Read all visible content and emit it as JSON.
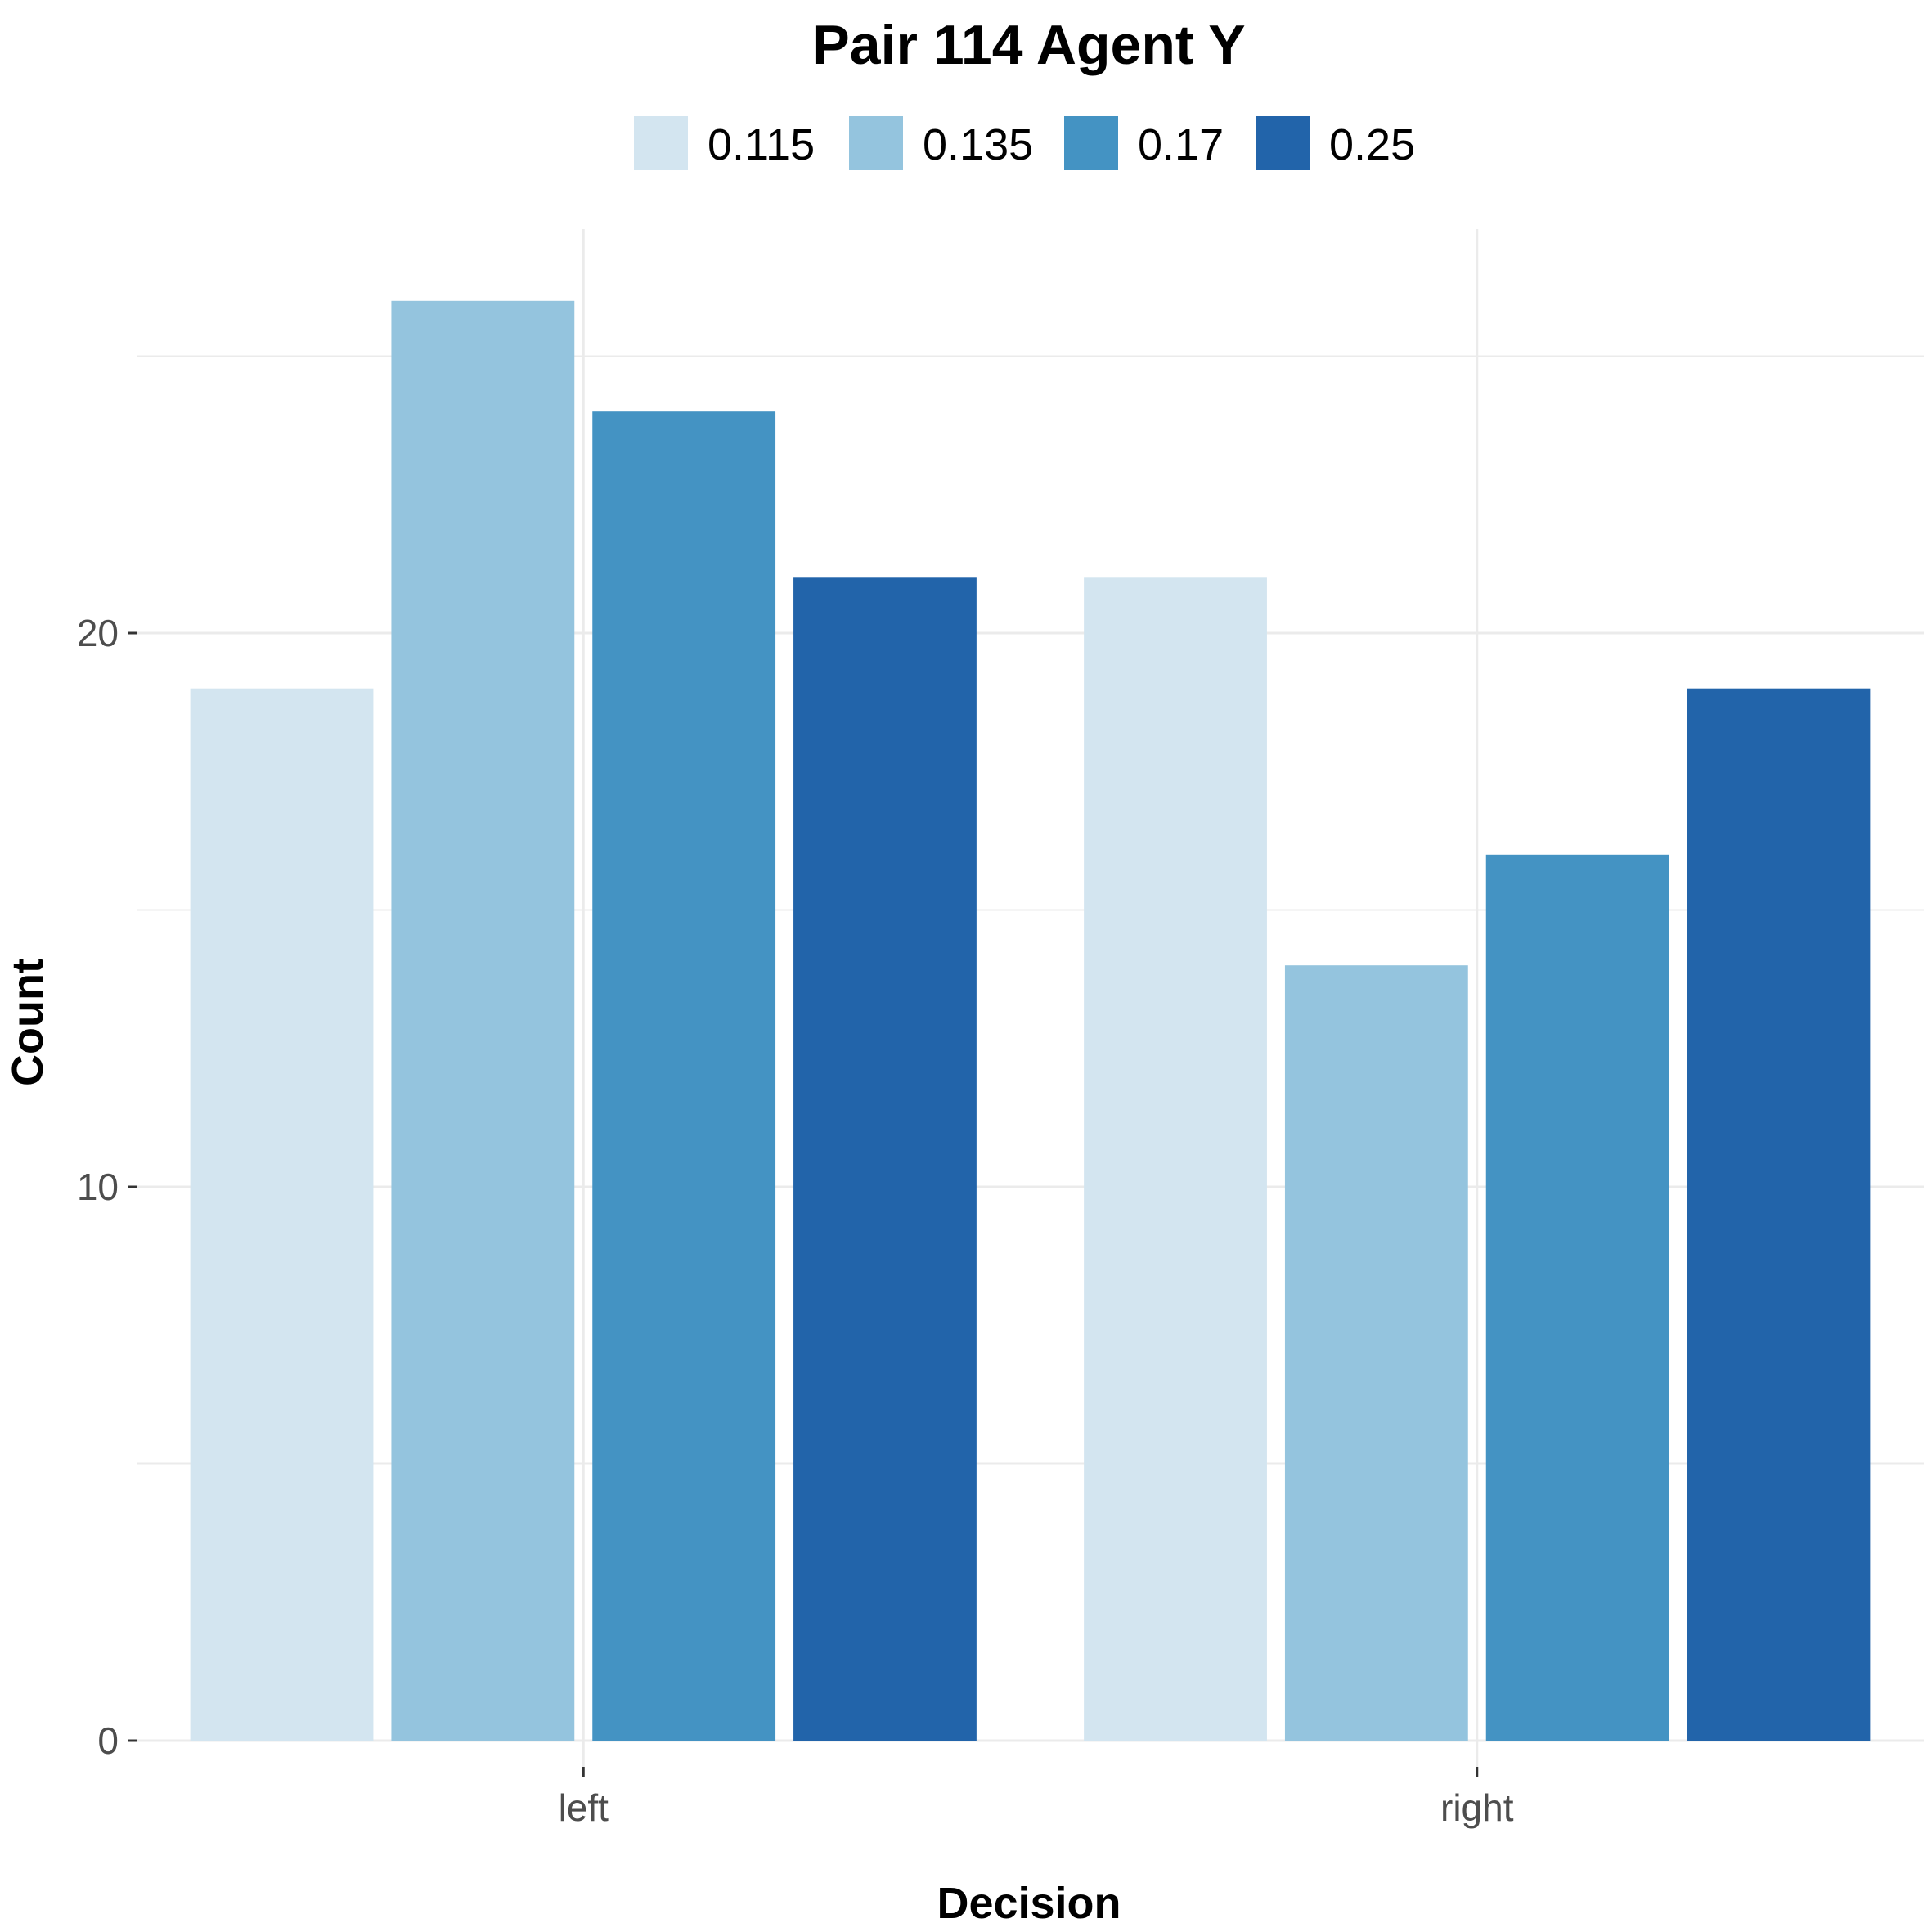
{
  "chart_data": {
    "type": "bar",
    "title": "Pair 114 Agent Y",
    "xlabel": "Decision",
    "ylabel": "Count",
    "categories": [
      "left",
      "right"
    ],
    "legend_title": "",
    "legend_position": "top",
    "ylim": [
      0,
      26
    ],
    "yticks": [
      0,
      10,
      20
    ],
    "grid": true,
    "series": [
      {
        "name": "0.115",
        "color": "#d3e5f0",
        "values": [
          19,
          21
        ]
      },
      {
        "name": "0.135",
        "color": "#94c4de",
        "values": [
          26,
          14
        ]
      },
      {
        "name": "0.17",
        "color": "#4493c3",
        "values": [
          24,
          16
        ]
      },
      {
        "name": "0.25",
        "color": "#2264aa",
        "values": [
          21,
          19
        ]
      }
    ]
  }
}
